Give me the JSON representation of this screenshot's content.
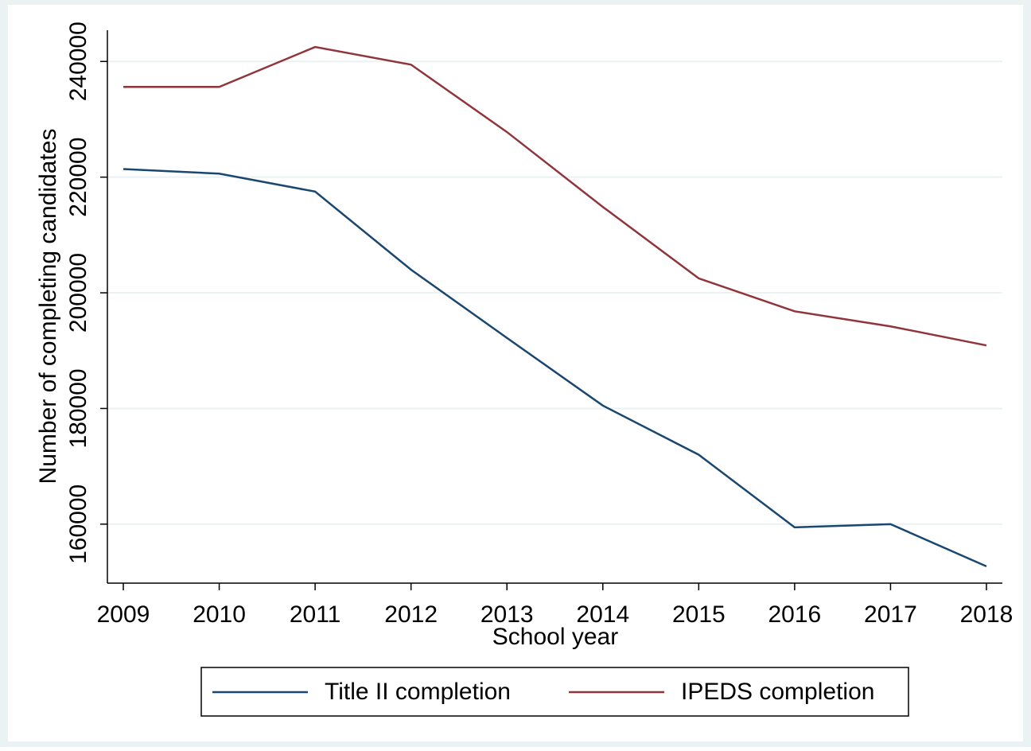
{
  "chart_data": {
    "type": "line",
    "x": [
      2009,
      2010,
      2011,
      2012,
      2013,
      2014,
      2015,
      2016,
      2017,
      2018
    ],
    "xlabel": "School year",
    "ylabel": "Number of completing candidates",
    "xlim": [
      2008.834,
      2018.166
    ],
    "xticks": [
      2009,
      2010,
      2011,
      2012,
      2013,
      2014,
      2015,
      2016,
      2017,
      2018
    ],
    "ylim": [
      149800,
      245400
    ],
    "yticks": [
      160000,
      180000,
      200000,
      220000,
      240000
    ],
    "grid": true,
    "legend": "bottom",
    "series": [
      {
        "name": "Title II completion",
        "color": "#1a476f",
        "values": [
          221400,
          220600,
          217500,
          204000,
          192200,
          180500,
          172000,
          159450,
          160000,
          152700
        ]
      },
      {
        "name": "IPEDS completion",
        "color": "#90353b",
        "values": [
          235600,
          235600,
          242500,
          239450,
          227800,
          214850,
          202500,
          196800,
          194200,
          190900
        ]
      }
    ]
  }
}
